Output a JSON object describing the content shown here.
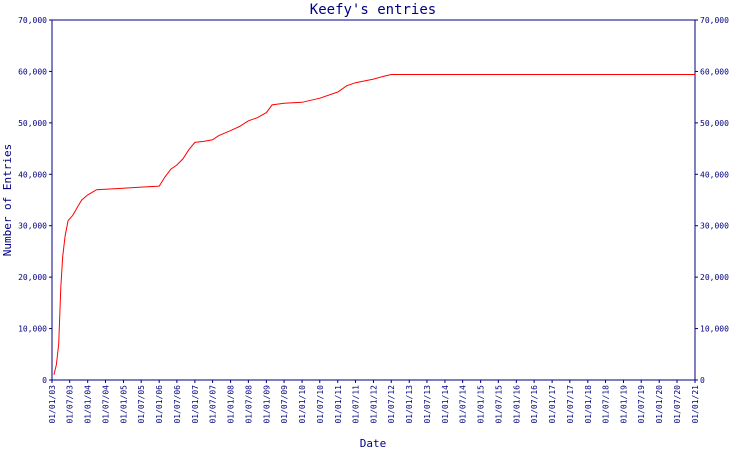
{
  "chart_data": {
    "type": "line",
    "title": "Keefy's entries",
    "xlabel": "Date",
    "ylabel": "Number of Entries",
    "ylim": [
      0,
      70000
    ],
    "y_ticks": [
      0,
      10000,
      20000,
      30000,
      40000,
      50000,
      60000,
      70000
    ],
    "y_tick_labels": [
      "0",
      "10,000",
      "20,000",
      "30,000",
      "40,000",
      "50,000",
      "60,000",
      "70,000"
    ],
    "x_tick_labels": [
      "01/01/03",
      "01/07/03",
      "01/01/04",
      "01/07/04",
      "01/01/05",
      "01/07/05",
      "01/01/06",
      "01/07/06",
      "01/01/07",
      "01/07/07",
      "01/01/08",
      "01/07/08",
      "01/01/09",
      "01/07/09",
      "01/01/10",
      "01/07/10",
      "01/01/11",
      "01/07/11",
      "01/01/12",
      "01/07/12",
      "01/01/13",
      "01/07/13",
      "01/01/14",
      "01/07/14",
      "01/01/15",
      "01/07/15",
      "01/01/16",
      "01/07/16",
      "01/01/17",
      "01/07/17",
      "01/01/18",
      "01/07/18",
      "01/01/19",
      "01/07/19",
      "01/01/20",
      "01/07/20",
      "01/01/21"
    ],
    "grid": false,
    "colors": {
      "axis": "#000080",
      "line": "#ff0000"
    },
    "series": [
      {
        "values": [
          {
            "x": "2003-01-20",
            "y": 1000
          },
          {
            "x": "2003-02-15",
            "y": 3000
          },
          {
            "x": "2003-03-10",
            "y": 7000
          },
          {
            "x": "2003-04-01",
            "y": 18000
          },
          {
            "x": "2003-04-20",
            "y": 24000
          },
          {
            "x": "2003-05-15",
            "y": 28000
          },
          {
            "x": "2003-06-15",
            "y": 31000
          },
          {
            "x": "2003-08-01",
            "y": 32000
          },
          {
            "x": "2003-09-15",
            "y": 33500
          },
          {
            "x": "2003-11-01",
            "y": 35000
          },
          {
            "x": "2004-01-01",
            "y": 36000
          },
          {
            "x": "2004-04-01",
            "y": 37000
          },
          {
            "x": "2004-07-01",
            "y": 37100
          },
          {
            "x": "2005-01-01",
            "y": 37300
          },
          {
            "x": "2005-07-01",
            "y": 37500
          },
          {
            "x": "2006-01-01",
            "y": 37700
          },
          {
            "x": "2006-03-01",
            "y": 39500
          },
          {
            "x": "2006-05-01",
            "y": 41000
          },
          {
            "x": "2006-07-01",
            "y": 41800
          },
          {
            "x": "2006-09-01",
            "y": 43000
          },
          {
            "x": "2006-11-01",
            "y": 44800
          },
          {
            "x": "2007-01-01",
            "y": 46200
          },
          {
            "x": "2007-04-01",
            "y": 46400
          },
          {
            "x": "2007-07-01",
            "y": 46700
          },
          {
            "x": "2007-09-01",
            "y": 47500
          },
          {
            "x": "2008-01-01",
            "y": 48500
          },
          {
            "x": "2008-04-01",
            "y": 49300
          },
          {
            "x": "2008-07-01",
            "y": 50400
          },
          {
            "x": "2008-10-01",
            "y": 51000
          },
          {
            "x": "2009-01-01",
            "y": 52000
          },
          {
            "x": "2009-03-01",
            "y": 53500
          },
          {
            "x": "2009-07-01",
            "y": 53800
          },
          {
            "x": "2010-01-01",
            "y": 54000
          },
          {
            "x": "2010-07-01",
            "y": 54800
          },
          {
            "x": "2011-01-01",
            "y": 56000
          },
          {
            "x": "2011-04-01",
            "y": 57200
          },
          {
            "x": "2011-07-01",
            "y": 57800
          },
          {
            "x": "2012-01-01",
            "y": 58500
          },
          {
            "x": "2012-04-01",
            "y": 59000
          },
          {
            "x": "2012-07-01",
            "y": 59400
          },
          {
            "x": "2013-01-01",
            "y": 59400
          },
          {
            "x": "2021-01-01",
            "y": 59400
          }
        ]
      }
    ]
  }
}
